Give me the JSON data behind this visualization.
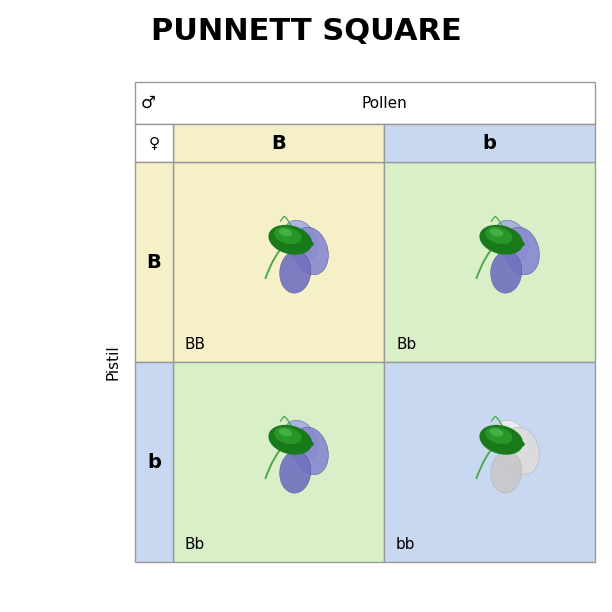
{
  "title": "PUNNETT SQUARE",
  "title_fontsize": 22,
  "title_fontweight": "bold",
  "background_color": "#ffffff",
  "pollen_label": "Pollen",
  "pistil_label": "Pistil",
  "male_symbol": "♂",
  "female_symbol": "♀",
  "col_alleles": [
    "B",
    "b"
  ],
  "row_alleles": [
    "B",
    "b"
  ],
  "cell_labels": [
    [
      "BB",
      "Bb"
    ],
    [
      "Bb",
      "bb"
    ]
  ],
  "color_yellow": "#f5f0c8",
  "color_blue": "#c8d8f0",
  "color_green": "#d8efc8",
  "header_box_color": "#ffffff",
  "allele_fontsize": 14,
  "label_fontsize": 11,
  "cell_label_fontsize": 11,
  "grid_line_color": "#999999",
  "green_dark": "#1a7a1a",
  "green_mid": "#2e9e2e",
  "green_light": "#5abf5a",
  "green_stem": "#4aaa4a",
  "petal_purple_dark": "#7070c0",
  "petal_purple_mid": "#8888d0",
  "petal_purple_light": "#a0a8e0",
  "petal_white_dark": "#c8c8c8",
  "petal_white_mid": "#dcdcdc",
  "petal_white_light": "#f0f0f0"
}
